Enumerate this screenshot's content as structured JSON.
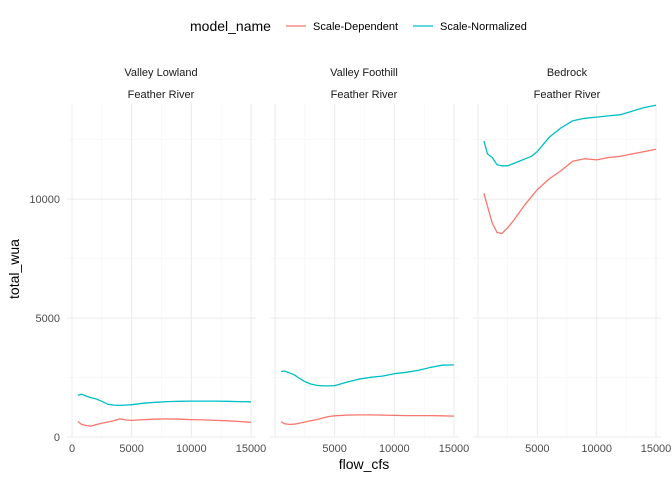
{
  "chart_data": {
    "type": "line",
    "xlabel": "flow_cfs",
    "ylabel": "total_wua",
    "legend": {
      "title": "model_name",
      "placement": "top",
      "entries": [
        {
          "name": "Scale-Dependent",
          "color": "#F8766D"
        },
        {
          "name": "Scale-Normalized",
          "color": "#00BFC4"
        }
      ]
    },
    "grid": true,
    "xlim": [
      0,
      15000
    ],
    "ylim": [
      0,
      14000
    ],
    "y_ticks": [
      0,
      5000,
      10000
    ],
    "y_tick_labels": [
      "0",
      "5000",
      "10000"
    ],
    "panels": [
      {
        "strip": [
          "Valley Lowland",
          "Feather River"
        ],
        "x_ticks": [
          0,
          5000,
          10000,
          15000
        ],
        "x_tick_labels": [
          "0",
          "5000",
          "10000",
          "15000"
        ],
        "series": [
          {
            "name": "Scale-Dependent",
            "color": "#F8766D",
            "x": [
              500,
              800,
              1200,
              1600,
              2000,
              2500,
              3000,
              3500,
              4000,
              4500,
              5000,
              6000,
              7000,
              8000,
              9000,
              10000,
              11000,
              12000,
              13000,
              14000,
              15000
            ],
            "y": [
              650,
              530,
              480,
              460,
              520,
              580,
              630,
              680,
              760,
              720,
              700,
              730,
              750,
              760,
              750,
              730,
              720,
              700,
              680,
              650,
              620
            ]
          },
          {
            "name": "Scale-Normalized",
            "color": "#00BFC4",
            "x": [
              500,
              800,
              1200,
              1600,
              2000,
              2500,
              3000,
              3500,
              4000,
              4500,
              5000,
              6000,
              7000,
              8000,
              9000,
              10000,
              11000,
              12000,
              13000,
              14000,
              15000
            ],
            "y": [
              1750,
              1800,
              1720,
              1650,
              1600,
              1500,
              1380,
              1340,
              1330,
              1340,
              1360,
              1420,
              1460,
              1490,
              1500,
              1510,
              1510,
              1510,
              1500,
              1490,
              1480
            ]
          }
        ]
      },
      {
        "strip": [
          "Valley Foothill",
          "Feather River"
        ],
        "x_ticks": [
          5000,
          10000,
          15000
        ],
        "x_tick_labels": [
          "5000",
          "10000",
          "15000"
        ],
        "series": [
          {
            "name": "Scale-Dependent",
            "color": "#F8766D",
            "x": [
              500,
              800,
              1200,
              1600,
              2000,
              2500,
              3000,
              3500,
              4000,
              4500,
              5000,
              6000,
              7000,
              8000,
              9000,
              10000,
              11000,
              12000,
              13000,
              14000,
              15000
            ],
            "y": [
              650,
              560,
              530,
              540,
              580,
              630,
              680,
              730,
              800,
              860,
              890,
              920,
              930,
              930,
              920,
              910,
              900,
              900,
              900,
              890,
              880
            ]
          },
          {
            "name": "Scale-Normalized",
            "color": "#00BFC4",
            "x": [
              500,
              800,
              1200,
              1600,
              2000,
              2500,
              3000,
              3500,
              4000,
              4500,
              5000,
              6000,
              7000,
              8000,
              9000,
              10000,
              11000,
              12000,
              13000,
              14000,
              15000
            ],
            "y": [
              2750,
              2770,
              2700,
              2620,
              2480,
              2330,
              2230,
              2170,
              2150,
              2150,
              2160,
              2300,
              2430,
              2510,
              2560,
              2660,
              2720,
              2800,
              2920,
              3020,
              3030
            ]
          }
        ]
      },
      {
        "strip": [
          "Bedrock",
          "Feather River"
        ],
        "x_ticks": [
          5000,
          10000,
          15000
        ],
        "x_tick_labels": [
          "5000",
          "10000",
          "15000"
        ],
        "series": [
          {
            "name": "Scale-Dependent",
            "color": "#F8766D",
            "x": [
              500,
              800,
              1200,
              1600,
              2000,
              2500,
              3000,
              3500,
              4000,
              4500,
              5000,
              6000,
              7000,
              8000,
              9000,
              10000,
              11000,
              12000,
              13000,
              14000,
              15000
            ],
            "y": [
              10250,
              9700,
              9000,
              8600,
              8550,
              8800,
              9100,
              9450,
              9800,
              10100,
              10400,
              10850,
              11200,
              11600,
              11700,
              11650,
              11750,
              11800,
              11900,
              12000,
              12100
            ]
          },
          {
            "name": "Scale-Normalized",
            "color": "#00BFC4",
            "x": [
              500,
              800,
              1200,
              1600,
              2000,
              2500,
              3000,
              3500,
              4000,
              4500,
              5000,
              6000,
              7000,
              8000,
              9000,
              10000,
              11000,
              12000,
              13000,
              14000,
              15000
            ],
            "y": [
              12450,
              11900,
              11750,
              11450,
              11400,
              11400,
              11500,
              11600,
              11700,
              11800,
              12000,
              12600,
              13000,
              13300,
              13400,
              13450,
              13500,
              13550,
              13700,
              13850,
              13950
            ]
          }
        ]
      }
    ]
  }
}
